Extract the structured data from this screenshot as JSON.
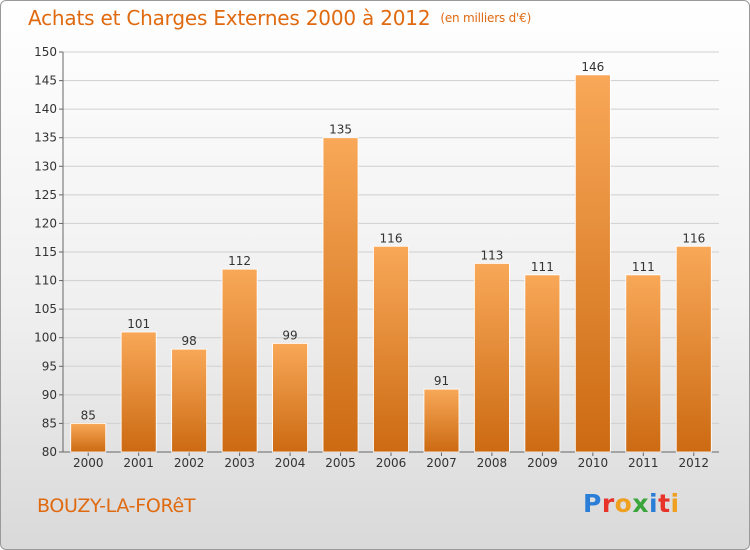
{
  "title": "Achats et Charges Externes 2000 à 2012",
  "subtitle": "(en milliers d'€)",
  "location": "BOUZY-LA-FORêT",
  "logo": {
    "text": "Proxiti",
    "letter_colors": [
      "#2a7ed8",
      "#e8332a",
      "#f0a020",
      "#3aa53a",
      "#2a7ed8",
      "#e8332a",
      "#f0a020"
    ]
  },
  "colors": {
    "bar_top": "#f8a858",
    "bar_bottom": "#cc6a12",
    "accent": "#e06a10"
  },
  "chart_data": {
    "type": "bar",
    "title": "Achats et Charges Externes 2000 à 2012",
    "subtitle": "(en milliers d'€)",
    "xlabel": "",
    "ylabel": "",
    "categories": [
      "2000",
      "2001",
      "2002",
      "2003",
      "2004",
      "2005",
      "2006",
      "2007",
      "2008",
      "2009",
      "2010",
      "2011",
      "2012"
    ],
    "values": [
      85,
      101,
      98,
      112,
      99,
      135,
      116,
      91,
      113,
      111,
      146,
      111,
      116
    ],
    "ylim": [
      80,
      150
    ],
    "yticks": [
      80,
      85,
      90,
      95,
      100,
      105,
      110,
      115,
      120,
      125,
      130,
      135,
      140,
      145,
      150
    ],
    "grid": true,
    "data_labels": true
  }
}
